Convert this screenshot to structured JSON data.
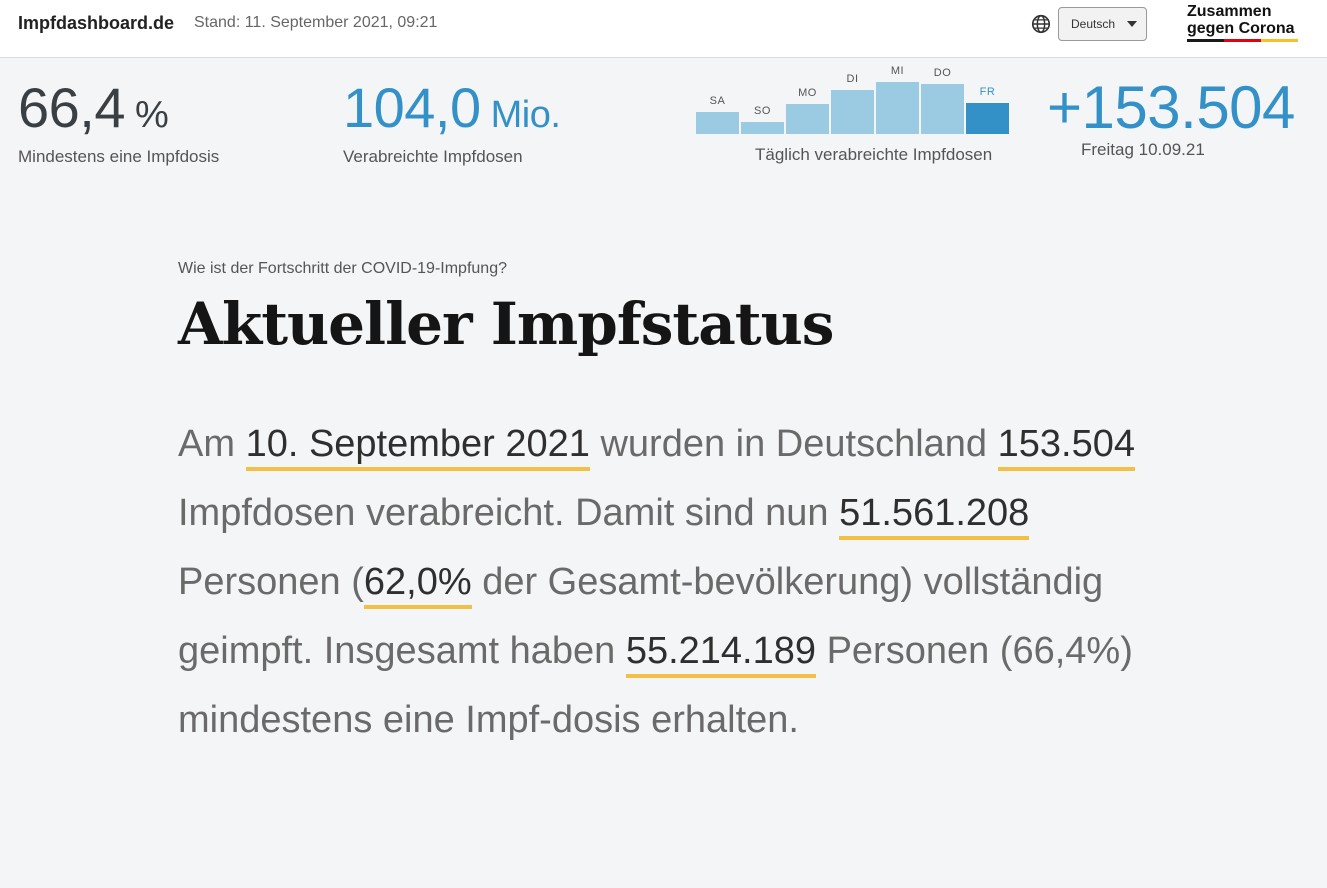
{
  "header": {
    "site_name": "Impfdashboard.de",
    "stand": "Stand: 11. September 2021, 09:21",
    "language": "Deutsch",
    "logo_line1": "Zusammen",
    "logo_line2": "gegen Corona",
    "logo_colors": [
      "#1a1a1a",
      "#e3000f",
      "#f7c02a"
    ]
  },
  "stats": {
    "first_dose": {
      "value": "66,4",
      "unit": "%",
      "label": "Mindestens eine Impfdosis"
    },
    "doses_total": {
      "value": "104,0",
      "unit": "Mio.",
      "label": "Verabreichte Impfdosen"
    },
    "daily": {
      "value": "+153.504",
      "label": "Freitag 10.09.21"
    }
  },
  "chart_data": {
    "type": "bar",
    "caption": "Täglich verabreichte Impfdosen",
    "categories": [
      "SA",
      "SO",
      "MO",
      "DI",
      "MI",
      "DO",
      "FR"
    ],
    "values": [
      0.42,
      0.24,
      0.58,
      0.84,
      1.0,
      0.96,
      0.6
    ],
    "highlight_index": 6,
    "colors": {
      "bar": "#9bcbe3",
      "highlight": "#3391c7"
    }
  },
  "main": {
    "question": "Wie ist der Fortschritt der COVID-19-Impfung?",
    "title": "Aktueller Impfstatus",
    "p1": "Am ",
    "h1": "10. September 2021",
    "p2": " wurden in Deutschland ",
    "h2": "153.504",
    "p3": " Impfdosen verabreicht. Damit sind nun ",
    "h3": "51.561.208",
    "p4": " Personen (",
    "h4": "62,0%",
    "p5": " der Gesamt-bevölkerung) vollständig geimpft. Insgesamt haben ",
    "h5": "55.214.189",
    "p6": " Personen (66,4%) mindestens eine Impf-dosis erhalten."
  },
  "colors": {
    "accent_blue": "#3391c7",
    "highlight_underline": "#f2c045"
  }
}
